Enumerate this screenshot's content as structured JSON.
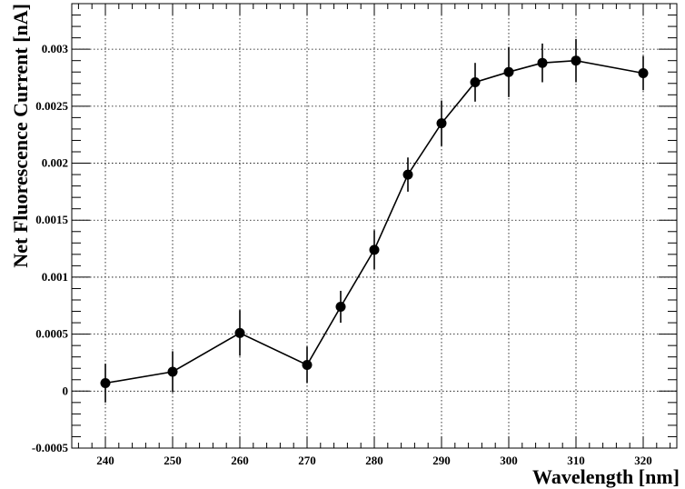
{
  "chart_data": {
    "type": "line",
    "title": "",
    "xlabel": "Wavelength [nm]",
    "ylabel": "Net Fluorescence Current [nA]",
    "xlim": [
      235,
      325
    ],
    "ylim": [
      -0.0005,
      0.0034
    ],
    "grid": true,
    "x_ticks": [
      240,
      250,
      260,
      270,
      280,
      290,
      300,
      310,
      320
    ],
    "x_tick_labels": [
      "240",
      "250",
      "260",
      "270",
      "280",
      "290",
      "300",
      "310",
      "320"
    ],
    "y_ticks": [
      -0.0005,
      0,
      0.0005,
      0.001,
      0.0015,
      0.002,
      0.0025,
      0.003
    ],
    "y_tick_labels": [
      "-0.0005",
      "0",
      "0.0005",
      "0.001",
      "0.0015",
      "0.002",
      "0.0025",
      "0.003"
    ],
    "series": [
      {
        "x": [
          240,
          250,
          260,
          270,
          275,
          280,
          285,
          290,
          295,
          300,
          305,
          310,
          320
        ],
        "y": [
          7e-05,
          0.00017,
          0.00051,
          0.00023,
          0.00074,
          0.00124,
          0.0019,
          0.00235,
          0.00271,
          0.0028,
          0.00288,
          0.0029,
          0.00279
        ],
        "yerr": [
          0.00017,
          0.00018,
          0.0002,
          0.00016,
          0.00014,
          0.00017,
          0.00015,
          0.0002,
          0.00017,
          0.00022,
          0.00017,
          0.00019,
          0.00015
        ]
      }
    ]
  }
}
